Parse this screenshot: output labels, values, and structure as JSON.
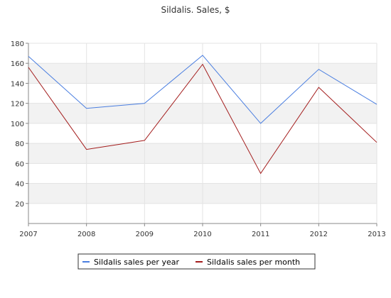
{
  "chart_data": {
    "type": "line",
    "title": "Sildalis. Sales, $",
    "xlabel": "",
    "ylabel": "",
    "x": [
      2007,
      2008,
      2009,
      2010,
      2011,
      2012,
      2013
    ],
    "xticks": [
      "2007",
      "2008",
      "2009",
      "2010",
      "2011",
      "2012",
      "2013"
    ],
    "yticks": [
      "20",
      "40",
      "60",
      "80",
      "100",
      "120",
      "140",
      "160",
      "180"
    ],
    "ylim": [
      0,
      180
    ],
    "grid": "horizontal alternating bands and vertical lines",
    "legend_position": "bottom-center",
    "series": [
      {
        "name": "Sildalis sales per year",
        "color": "#4a7ee0",
        "values": [
          167,
          115,
          120,
          168,
          100,
          154,
          119
        ]
      },
      {
        "name": "Sildalis sales per month",
        "color": "#a31c1c",
        "values": [
          156,
          74,
          83,
          159,
          50,
          136,
          81
        ]
      }
    ]
  }
}
